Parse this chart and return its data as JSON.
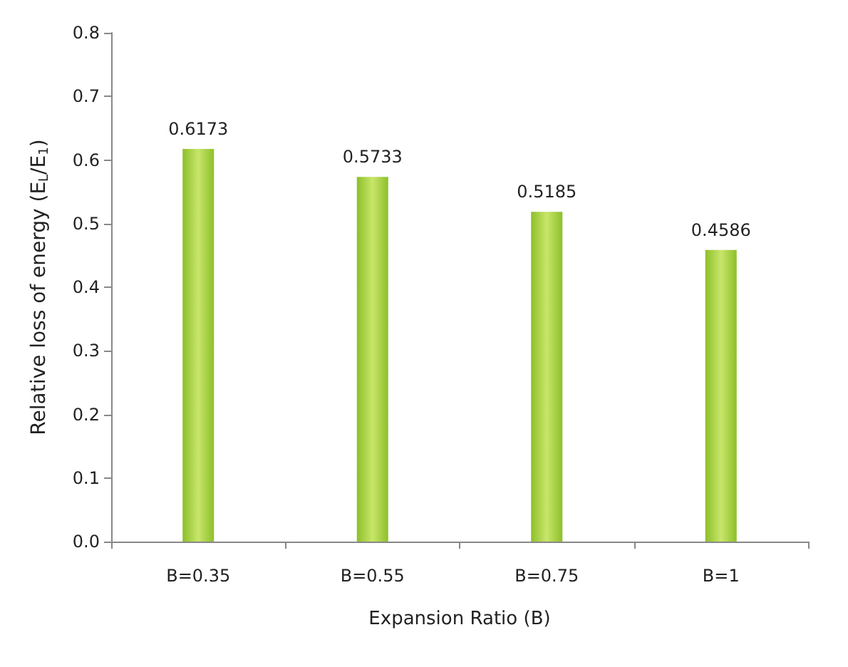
{
  "chart_data": {
    "type": "bar",
    "xlabel": "Expansion Ratio (B)",
    "ylabel": "Relative loss of energy (E$_{L}$/E$_{1}$)",
    "categories": [
      "B=0.35",
      "B=0.55",
      "B=0.75",
      "B=1"
    ],
    "values": [
      0.6173,
      0.5733,
      0.5185,
      0.4586
    ],
    "color": "#8dbf2a",
    "ylim": [
      0,
      0.8
    ],
    "yticks": [
      {
        "value": 0,
        "label": "0.0"
      },
      {
        "value": 0.1,
        "label": "0.1"
      },
      {
        "value": 0.2,
        "label": "0.2"
      },
      {
        "value": 0.3,
        "label": "0.3"
      },
      {
        "value": 0.4,
        "label": "0.4"
      },
      {
        "value": 0.5,
        "label": "0.5"
      },
      {
        "value": 0.6,
        "label": "0.6"
      },
      {
        "value": 0.7,
        "label": "0.7"
      },
      {
        "value": 0.8,
        "label": "0.8"
      }
    ],
    "data_labels": true,
    "grid": false
  }
}
